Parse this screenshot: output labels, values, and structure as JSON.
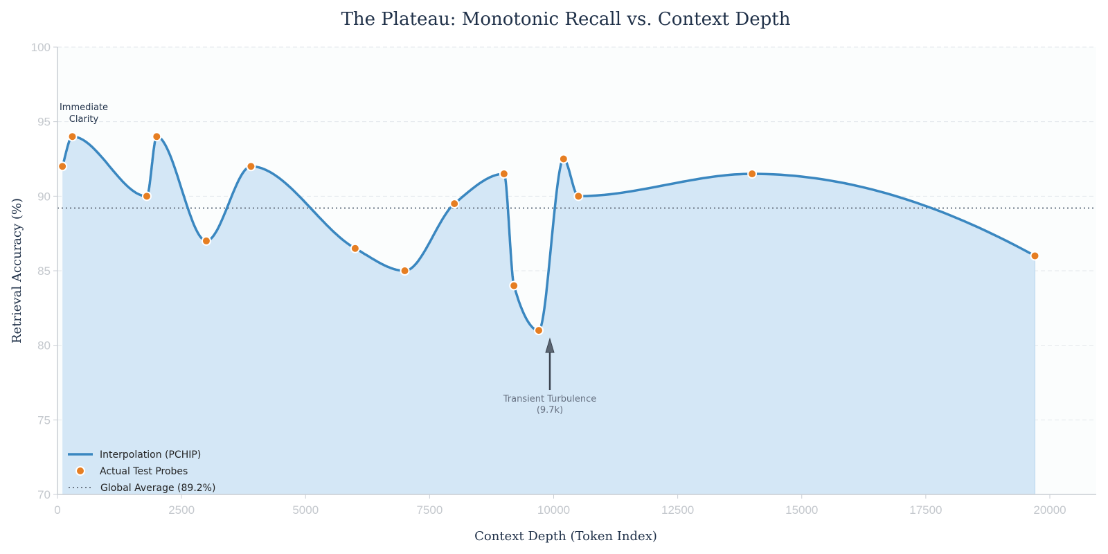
{
  "chart_data": {
    "type": "line",
    "title": "The Plateau: Monotonic Recall vs. Context Depth",
    "xlabel": "Context Depth (Token Index)",
    "ylabel": "Retrieval Accuracy (%)",
    "xlim": [
      0,
      20500
    ],
    "ylim": [
      70,
      100
    ],
    "xticks": [
      0,
      2500,
      5000,
      7500,
      10000,
      12500,
      15000,
      17500,
      20000
    ],
    "yticks": [
      70,
      75,
      80,
      85,
      90,
      95,
      100
    ],
    "grid": true,
    "legend_position": "lower left",
    "series": [
      {
        "name": "Interpolation (PCHIP)",
        "kind": "line",
        "color": "#3a87c0",
        "fill_color": "#d4e7f6"
      },
      {
        "name": "Actual Test Probes",
        "kind": "scatter",
        "color": "#e67e22",
        "x": [
          100,
          300,
          1800,
          2000,
          3000,
          3900,
          6000,
          7000,
          8000,
          9000,
          9200,
          9700,
          10200,
          10500,
          14000,
          19700
        ],
        "y": [
          92,
          94,
          90,
          94,
          87,
          92,
          86.5,
          85,
          89.5,
          91.5,
          84,
          81,
          92.5,
          90,
          91.5,
          86
        ]
      },
      {
        "name": "Global Average (89.2%)",
        "kind": "hline",
        "color": "#6b7785",
        "y": 89.2
      }
    ],
    "annotations": [
      {
        "text": "Immediate\nClarity",
        "x": 300,
        "y": 94
      },
      {
        "text": "Transient Turbulence\n(9.7k)",
        "x": 9700,
        "y": 81,
        "arrow": true
      }
    ]
  },
  "labels": {
    "title": "The Plateau: Monotonic Recall vs. Context Depth",
    "xlabel": "Context Depth (Token Index)",
    "ylabel": "Retrieval Accuracy (%)",
    "legend": {
      "line": "Interpolation (PCHIP)",
      "probes": "Actual Test Probes",
      "average": "Global Average (89.2%)"
    },
    "anno_immediate_1": "Immediate",
    "anno_immediate_2": "Clarity",
    "anno_turb_1": "Transient Turbulence",
    "anno_turb_2": "(9.7k)"
  }
}
